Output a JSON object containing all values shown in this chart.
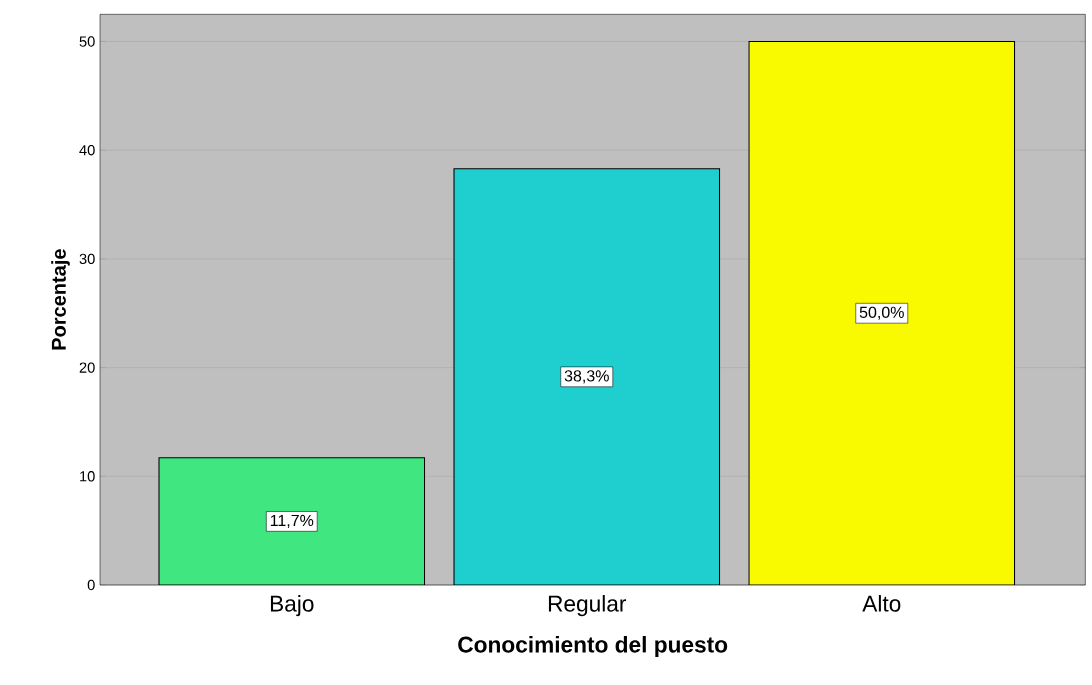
{
  "chart_data": {
    "type": "bar",
    "xlabel": "Conocimiento del puesto",
    "ylabel": "Porcentaje",
    "categories": [
      "Bajo",
      "Regular",
      "Alto"
    ],
    "values": [
      11.7,
      38.3,
      50.0
    ],
    "colors": [
      "#40e67f",
      "#1fcfcf",
      "#f9f900"
    ],
    "value_labels": [
      "11,7%",
      "38,3%",
      "50,0%"
    ],
    "ylim": [
      0,
      52.5
    ],
    "yticks": [
      0,
      10,
      20,
      30,
      40,
      50
    ],
    "grid": "y"
  }
}
